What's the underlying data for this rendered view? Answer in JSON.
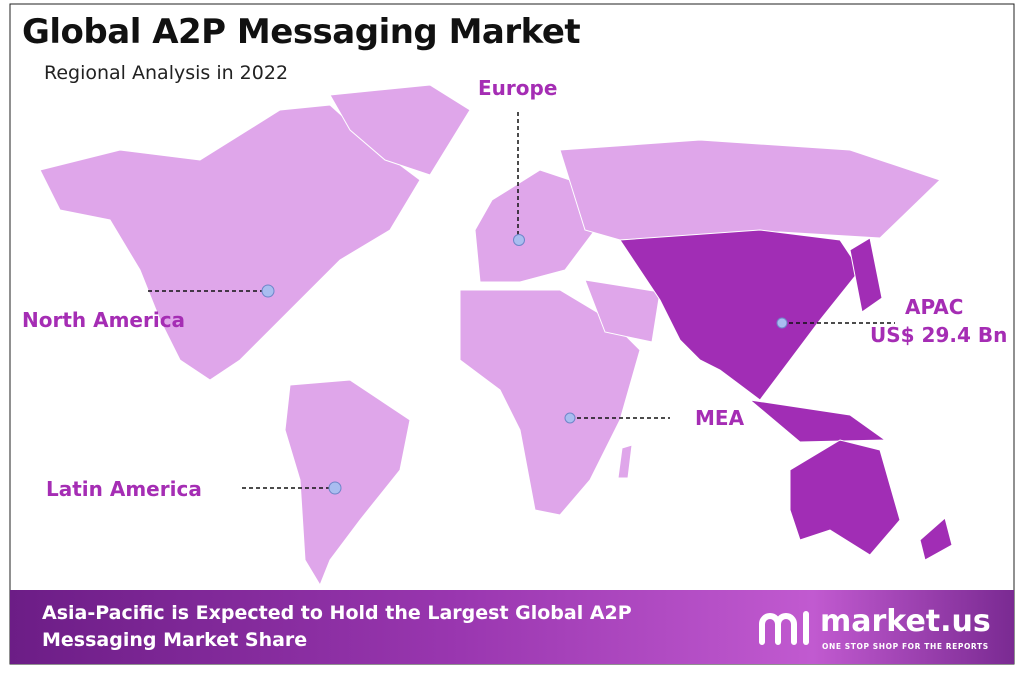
{
  "header": {
    "title": "Global A2P Messaging Market",
    "subtitle": "Regional Analysis in 2022"
  },
  "regions": [
    {
      "label": "Europe"
    },
    {
      "label": "North America"
    },
    {
      "label": "Latin America"
    },
    {
      "label": "MEA"
    },
    {
      "label": "APAC",
      "value_label": "US$ 29.4 Bn"
    }
  ],
  "footer": {
    "text": "Asia-Pacific is Expected to Hold the Largest Global A2P Messaging Market Share",
    "brand": "market.us",
    "tagline": "ONE STOP SHOP FOR THE REPORTS"
  }
}
